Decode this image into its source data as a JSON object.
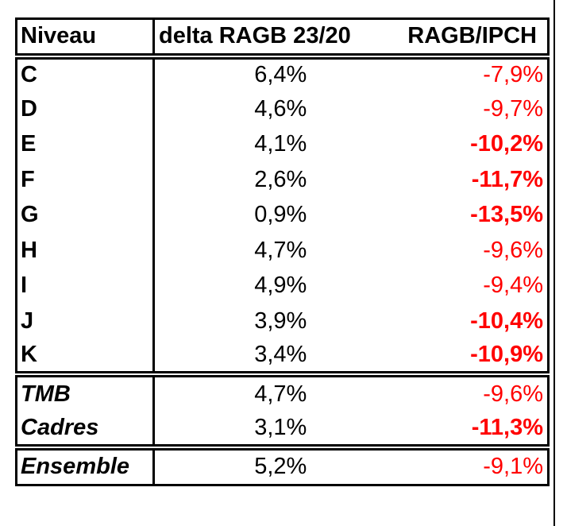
{
  "chart_data": {
    "type": "table",
    "columns": [
      "Niveau",
      "delta RAGB 23/20",
      "RAGB/IPCH"
    ],
    "rows": [
      {
        "niveau": "C",
        "delta_ragb": "6,4%",
        "ragb_ipch": "-7,9%",
        "ipch_bold": false
      },
      {
        "niveau": "D",
        "delta_ragb": "4,6%",
        "ragb_ipch": "-9,7%",
        "ipch_bold": false
      },
      {
        "niveau": "E",
        "delta_ragb": "4,1%",
        "ragb_ipch": "-10,2%",
        "ipch_bold": true
      },
      {
        "niveau": "F",
        "delta_ragb": "2,6%",
        "ragb_ipch": "-11,7%",
        "ipch_bold": true
      },
      {
        "niveau": "G",
        "delta_ragb": "0,9%",
        "ragb_ipch": "-13,5%",
        "ipch_bold": true
      },
      {
        "niveau": "H",
        "delta_ragb": "4,7%",
        "ragb_ipch": "-9,6%",
        "ipch_bold": false
      },
      {
        "niveau": "I",
        "delta_ragb": "4,9%",
        "ragb_ipch": "-9,4%",
        "ipch_bold": false
      },
      {
        "niveau": "J",
        "delta_ragb": "3,9%",
        "ragb_ipch": "-10,4%",
        "ipch_bold": true
      },
      {
        "niveau": "K",
        "delta_ragb": "3,4%",
        "ragb_ipch": "-10,9%",
        "ipch_bold": true
      }
    ],
    "summary_rows": [
      {
        "niveau": "TMB",
        "delta_ragb": "4,7%",
        "ragb_ipch": "-9,6%",
        "ipch_bold": false
      },
      {
        "niveau": "Cadres",
        "delta_ragb": "3,1%",
        "ragb_ipch": "-11,3%",
        "ipch_bold": true
      }
    ],
    "total_row": {
      "niveau": "Ensemble",
      "delta_ragb": "5,2%",
      "ragb_ipch": "-9,1%",
      "ipch_bold": false
    }
  },
  "colors": {
    "text": "#000000",
    "border": "#000000",
    "negative": "#ff0000"
  }
}
